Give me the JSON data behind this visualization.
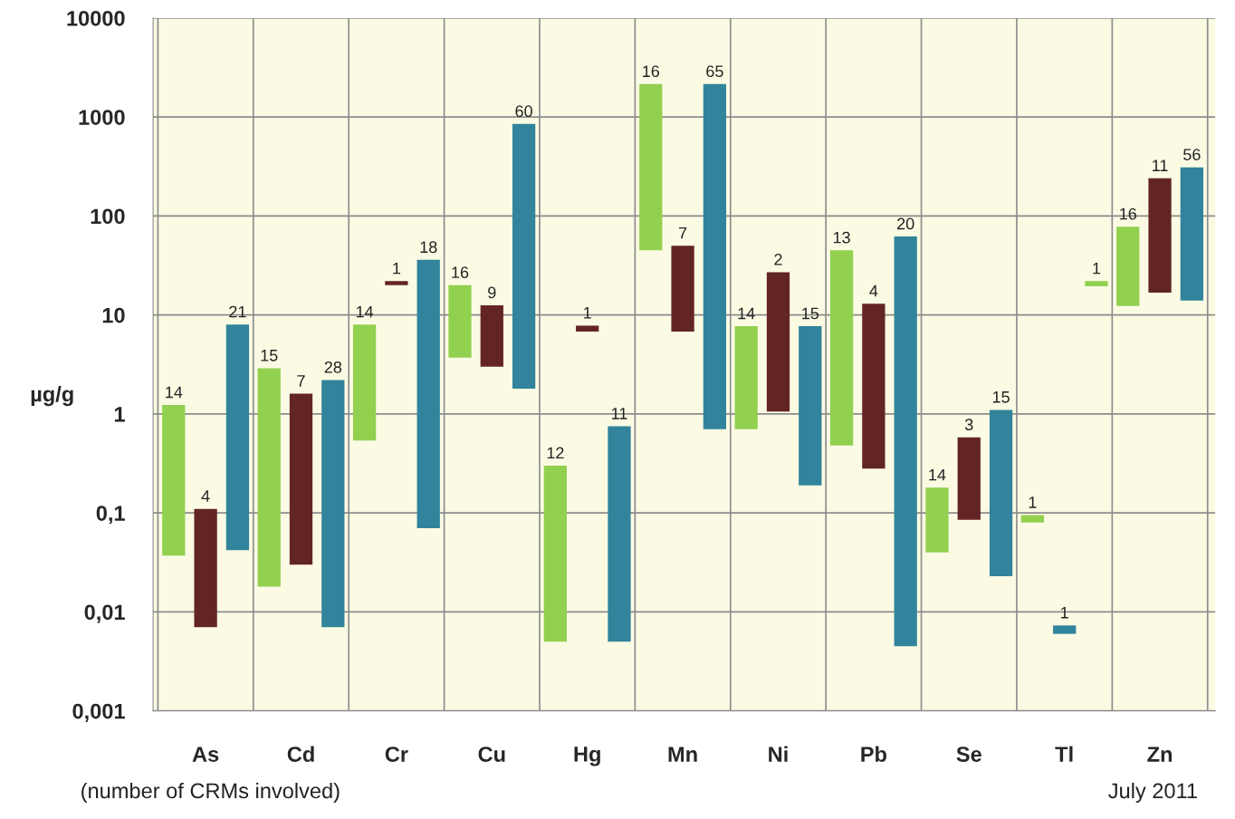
{
  "chart_data": {
    "type": "bar",
    "ylabel": "µg/g",
    "log": true,
    "categories": [
      "As",
      "Cd",
      "Cr",
      "Cu",
      "Hg",
      "Mn",
      "Ni",
      "Pb",
      "Se",
      "Tl",
      "Zn"
    ],
    "series": [
      {
        "color": "#92d050",
        "base": [
          0.037,
          0.018,
          0.54,
          3.7,
          0.005,
          45,
          0.7,
          0.48,
          0.04,
          0.08,
          12.3
        ],
        "values": [
          1.193,
          2.882,
          7.46,
          16.3,
          0.295,
          2105,
          7.0,
          44.52,
          0.14,
          0.015,
          65.7
        ]
      },
      {
        "colors": [
          "#632523",
          "#632523",
          "#632523",
          "#632523",
          "#632523",
          "#632523",
          "#632523",
          "#632523",
          "#632523",
          "#31849b",
          "#632523"
        ],
        "base": [
          0.007,
          0.03,
          20,
          3,
          6.8,
          6.8,
          1.06,
          0.28,
          0.085,
          0.006,
          16.8
        ],
        "values": [
          0.103,
          1.57,
          2,
          9.5,
          1.0,
          43.2,
          25.94,
          12.72,
          0.495,
          0.0013,
          223.2
        ]
      },
      {
        "colors": [
          "#31849b",
          "#31849b",
          "#31849b",
          "#31849b",
          "#31849b",
          "#31849b",
          "#31849b",
          "#31849b",
          "#31849b",
          "#92d050",
          "#31849b"
        ],
        "base": [
          0.042,
          0.007,
          0.07,
          1.8,
          0.005,
          0.7,
          0.19,
          0.0045,
          0.023,
          19.5,
          14
        ],
        "values": [
          7.958,
          2.193,
          35.93,
          848.2,
          0.745,
          2149.3,
          7.51,
          61.9955,
          1.077,
          2.5,
          296
        ]
      }
    ],
    "ylim": [
      0.001,
      10000
    ],
    "yticks": [
      {
        "value": 0.001,
        "label": "0,001"
      },
      {
        "value": 0.01,
        "label": "0,01"
      },
      {
        "value": 0.1,
        "label": "0,1"
      },
      1,
      10,
      100,
      1000,
      10000
    ],
    "grid": true,
    "annotations": [
      "(number of CRMs involved)",
      "July 2011",
      "14",
      "4",
      "21",
      "15",
      "7",
      "28",
      "14",
      "1",
      "18",
      "16",
      "9",
      "60",
      "12",
      "1",
      "11",
      "16",
      "7",
      "65",
      "14",
      "2",
      "15",
      "13",
      "4",
      "20",
      "14",
      "3",
      "15",
      "1",
      "1",
      "1",
      "16",
      "11",
      "56"
    ]
  }
}
